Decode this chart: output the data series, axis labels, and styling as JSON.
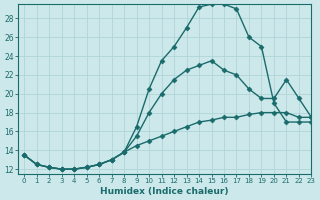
{
  "xlabel": "Humidex (Indice chaleur)",
  "ylabel": "",
  "xlim": [
    -0.5,
    23
  ],
  "ylim": [
    11.5,
    29.5
  ],
  "xticks": [
    0,
    1,
    2,
    3,
    4,
    5,
    6,
    7,
    8,
    9,
    10,
    11,
    12,
    13,
    14,
    15,
    16,
    17,
    18,
    19,
    20,
    21,
    22,
    23
  ],
  "yticks": [
    12,
    14,
    16,
    18,
    20,
    22,
    24,
    26,
    28
  ],
  "background_color": "#cce8ea",
  "grid_color": "#b0d4d8",
  "line_color": "#1a6b6b",
  "curve1_x": [
    0,
    1,
    2,
    3,
    4,
    5,
    6,
    7,
    8,
    9,
    10,
    11,
    12,
    13,
    14,
    15,
    16,
    17,
    18,
    19,
    20,
    21,
    22,
    23
  ],
  "curve1_y": [
    13.5,
    12.5,
    12.2,
    12.0,
    12.0,
    12.2,
    12.5,
    13.0,
    13.8,
    16.5,
    20.5,
    23.5,
    25.0,
    27.0,
    29.2,
    29.5,
    29.5,
    29.0,
    26.0,
    25.0,
    19.0,
    17.0,
    17.0,
    17.0
  ],
  "curve2_x": [
    0,
    1,
    2,
    3,
    4,
    5,
    6,
    7,
    8,
    9,
    10,
    11,
    12,
    13,
    14,
    15,
    16,
    17,
    18,
    19,
    20,
    21,
    22,
    23
  ],
  "curve2_y": [
    13.5,
    12.5,
    12.2,
    12.0,
    12.0,
    12.2,
    12.5,
    13.0,
    13.8,
    15.5,
    18.0,
    20.0,
    21.5,
    22.5,
    23.0,
    23.5,
    22.5,
    22.0,
    20.5,
    19.5,
    19.5,
    21.5,
    19.5,
    17.5
  ],
  "curve3_x": [
    0,
    1,
    2,
    3,
    4,
    5,
    6,
    7,
    8,
    9,
    10,
    11,
    12,
    13,
    14,
    15,
    16,
    17,
    18,
    19,
    20,
    21,
    22,
    23
  ],
  "curve3_y": [
    13.5,
    12.5,
    12.2,
    12.0,
    12.0,
    12.2,
    12.5,
    13.0,
    13.8,
    14.5,
    15.0,
    15.5,
    16.0,
    16.5,
    17.0,
    17.2,
    17.5,
    17.5,
    17.8,
    18.0,
    18.0,
    18.0,
    17.5,
    17.5
  ],
  "marker": "D",
  "markersize": 2.5,
  "linewidth": 1.0
}
